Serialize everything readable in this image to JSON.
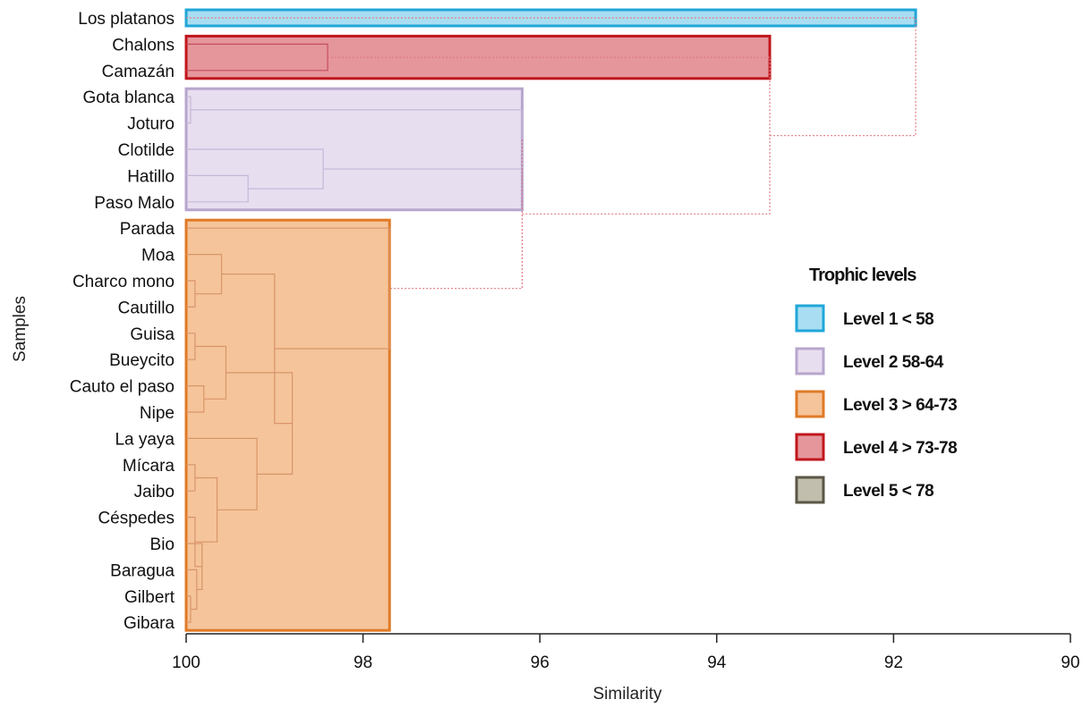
{
  "chart_data": {
    "type": "dendrogram",
    "orientation": "horizontal",
    "xlabel": "Similarity",
    "ylabel": "Samples",
    "xlim": [
      100,
      90
    ],
    "xticks": [
      "100",
      "98",
      "96",
      "94",
      "92",
      "90"
    ],
    "samples": [
      "Los platanos",
      "Chalons",
      "Camazán",
      "Gota blanca",
      "Joturo",
      "Clotilde",
      "Hatillo",
      "Paso Malo",
      "Parada",
      "Moa",
      "Charco mono",
      "Cautillo",
      "Guisa",
      "Bueycito",
      "Cauto el paso",
      "Nipe",
      "La yaya",
      "Mícara",
      "Jaibo",
      "Céspedes",
      "Bio",
      "Baragua",
      "Gilbert",
      "Gibara"
    ],
    "merges": [
      {
        "a": 23,
        "b": 22,
        "sim": 99.95
      },
      {
        "a": 21,
        "b": "m0",
        "sim": 99.88
      },
      {
        "a": 20,
        "b": "m1",
        "sim": 99.82
      },
      {
        "a": 19,
        "b": "m2",
        "sim": 99.9
      },
      {
        "a": 18,
        "b": 17,
        "sim": 99.9
      },
      {
        "a": "m4",
        "b": "m3",
        "sim": 99.65
      },
      {
        "a": 16,
        "b": "m5",
        "sim": 99.2
      },
      {
        "a": 15,
        "b": 14,
        "sim": 99.8
      },
      {
        "a": 13,
        "b": 12,
        "sim": 99.9
      },
      {
        "a": "m8",
        "b": "m7",
        "sim": 99.55
      },
      {
        "a": "m9",
        "b": "m6",
        "sim": 98.8
      },
      {
        "a": 11,
        "b": 10,
        "sim": 99.9
      },
      {
        "a": 9,
        "b": "m11",
        "sim": 99.6
      },
      {
        "a": "m12",
        "b": "m10",
        "sim": 99.0
      },
      {
        "a": 8,
        "b": "m13",
        "sim": 97.7
      },
      {
        "a": 7,
        "b": 6,
        "sim": 99.3
      },
      {
        "a": 4,
        "b": 3,
        "sim": 99.95
      },
      {
        "a": 5,
        "b": "m15",
        "sim": 98.45
      },
      {
        "a": "m16",
        "b": "m17",
        "sim": 96.2
      },
      {
        "a": "m18",
        "b": "m14",
        "sim": 96.2
      },
      {
        "a": 2,
        "b": 1,
        "sim": 98.4
      },
      {
        "a": "m20",
        "b": "m19",
        "sim": 93.4
      },
      {
        "a": "m21",
        "b": 0,
        "sim": 91.75
      }
    ],
    "level_boxes": [
      {
        "level": "Level 1",
        "from": "Los platanos",
        "to": "Los platanos",
        "sim": 91.75
      },
      {
        "level": "Level 4",
        "from": "Chalons",
        "to": "Camazán",
        "sim": 93.4
      },
      {
        "level": "Level 2",
        "from": "Gota blanca",
        "to": "Paso Malo",
        "sim": 96.2
      },
      {
        "level": "Level 3",
        "from": "Parada",
        "to": "Gibara",
        "sim": 97.7
      }
    ],
    "legend": {
      "title": "Trophic levels",
      "position": "right",
      "items": [
        {
          "label": "Level 1  < 58",
          "fill": "#a9def2",
          "stroke": "#20a7d8"
        },
        {
          "label": "Level 2  58-64",
          "fill": "#e7def0",
          "stroke": "#b7a6cd"
        },
        {
          "label": "Level 3  > 64-73",
          "fill": "#f5c49a",
          "stroke": "#e07a26"
        },
        {
          "label": "Level 4  > 73-78",
          "fill": "#e5969b",
          "stroke": "#c0161c"
        },
        {
          "label": "Level 5  < 78",
          "fill": "#c2beae",
          "stroke": "#5b5646"
        }
      ]
    },
    "link_colors": {
      "Level 1": "#7fcde9",
      "Level 2": "#c5b8d8",
      "Level 3": "#d9956a",
      "Level 4": "#c44e5a",
      "outer": "#e07882"
    },
    "axis_color": "#222222"
  }
}
